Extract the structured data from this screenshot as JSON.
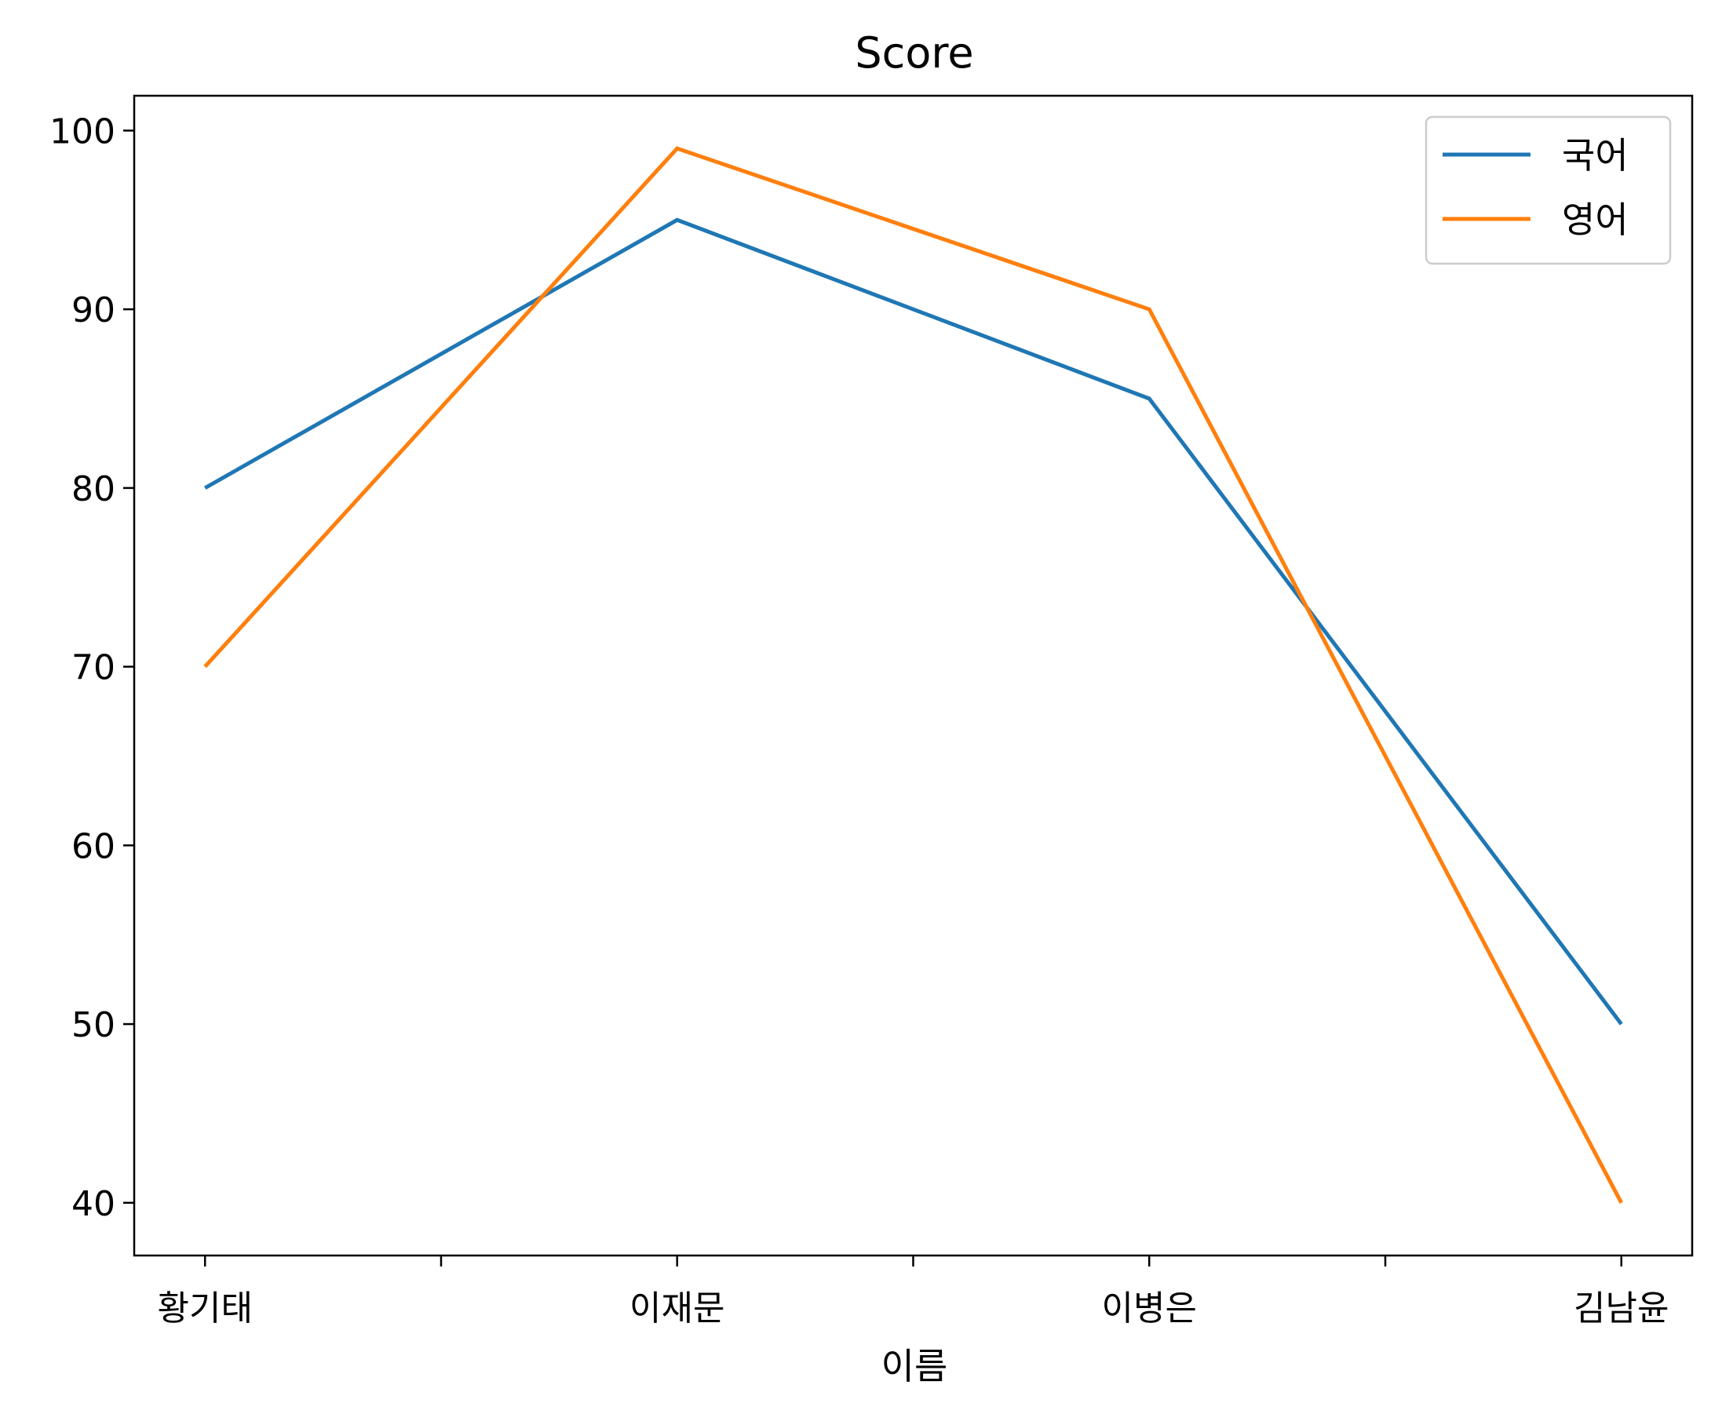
{
  "chart_data": {
    "type": "line",
    "title": "Score",
    "xlabel": "이름",
    "ylabel": "",
    "categories": [
      "황기태",
      "이재문",
      "이병은",
      "김남윤"
    ],
    "series": [
      {
        "name": "국어",
        "values": [
          80,
          95,
          85,
          50
        ],
        "color": "#1f77b4"
      },
      {
        "name": "영어",
        "values": [
          70,
          99,
          90,
          40
        ],
        "color": "#ff7f0e"
      }
    ],
    "ylim": [
      37.05,
      101.95
    ],
    "yticks": [
      40,
      50,
      60,
      70,
      80,
      90,
      100
    ],
    "x_minor_ticks": [
      0.5,
      1.5,
      2.5
    ],
    "grid": false,
    "legend_position": "top-right"
  }
}
